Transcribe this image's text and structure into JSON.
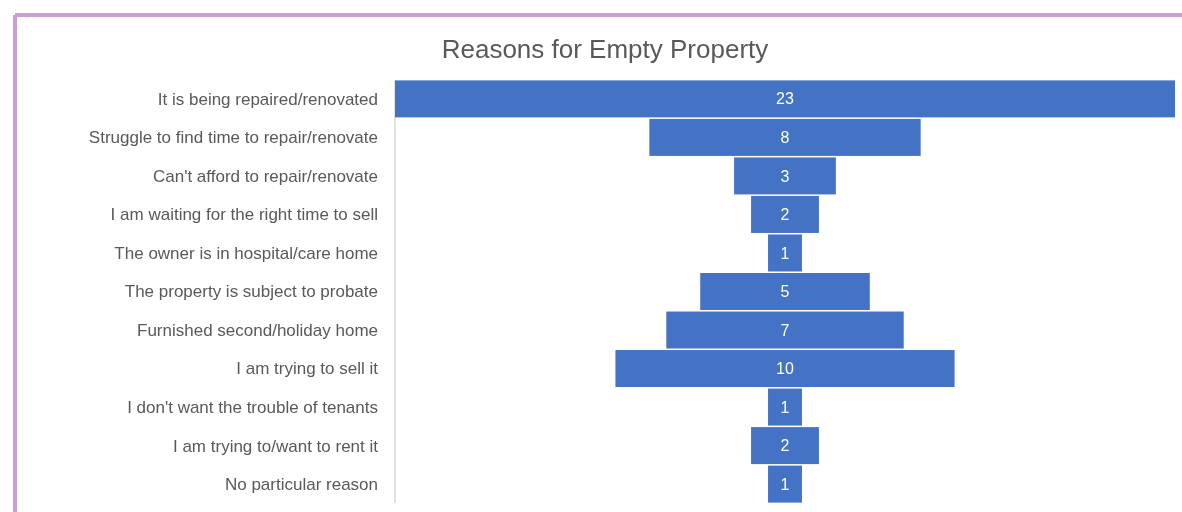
{
  "chart_data": {
    "type": "other",
    "title": "Reasons for Empty Property",
    "categories": [
      "It is being repaired/renovated",
      "Struggle to find time to repair/renovate",
      "Can't afford to repair/renovate",
      "I am waiting for the right time to sell",
      "The owner is in hospital/care home",
      "The property is subject to probate",
      "Furnished second/holiday home",
      "I am trying to sell it",
      "I don't want the trouble of tenants",
      "I am trying to/want to rent it",
      "No particular reason"
    ],
    "values": [
      23,
      8,
      3,
      2,
      1,
      5,
      7,
      10,
      1,
      2,
      1
    ],
    "color": "#4472c4",
    "data_labels": true
  }
}
